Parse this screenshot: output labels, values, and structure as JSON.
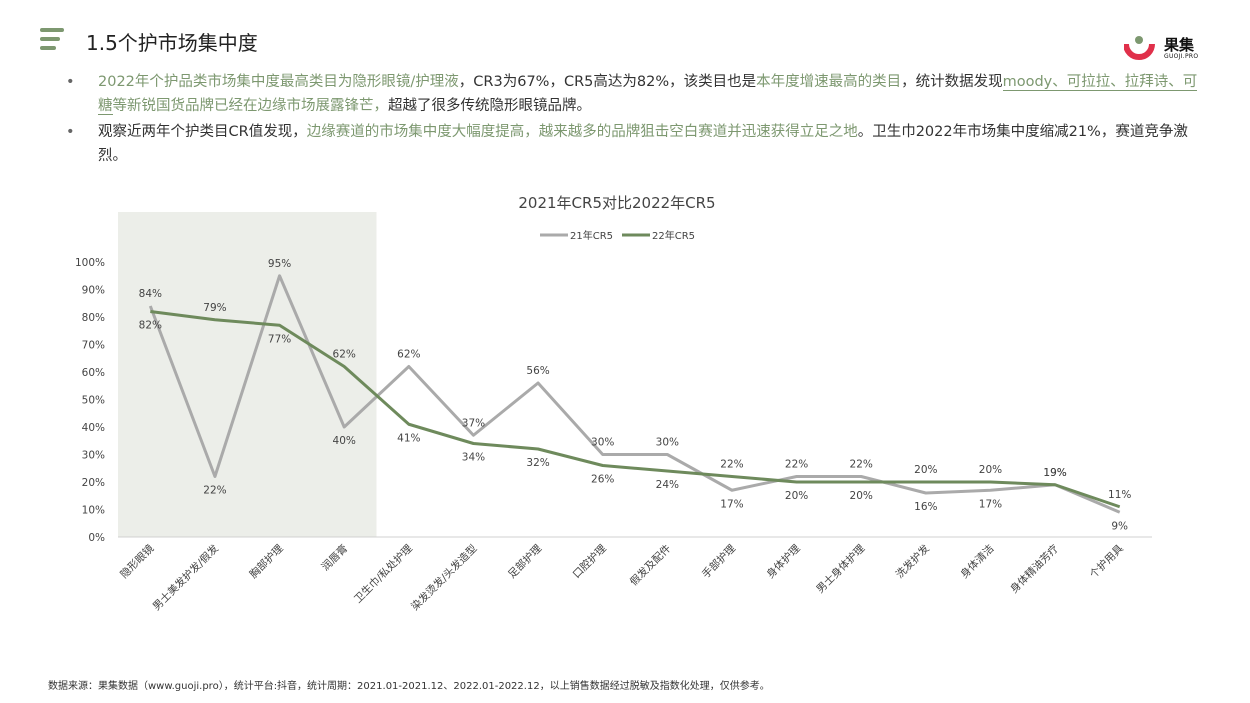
{
  "header": {
    "title": "1.5个护市场集中度",
    "logo_text": "果集",
    "logo_sub": "GUOJI.PRO"
  },
  "bullets": [
    {
      "p1": "2022年个护品类市场集中度最高类目为隐形眼镜/护理液",
      "p2": "，CR3为67%，CR5高达为82%，该类目也是",
      "p3": "本年度增速最高的类目",
      "p4": "，统计数据发现",
      "p5": "moody、可拉拉、拉拜诗、可糖",
      "p6": "等新锐国货品牌已经在边缘市场展露锋芒，",
      "p7": "超越了很多传统隐形眼镜品牌。"
    },
    {
      "p1": "观察近两年个护类目CR值发现，",
      "p2": "边缘赛道的市场集中度大幅度提高，越来越多的品牌狙击空白赛道并迅速获得立足之地",
      "p3": "。卫生巾2022年市场集中度缩减21%，赛道竞争激烈。"
    }
  ],
  "chart_data": {
    "type": "line",
    "title": "2021年CR5对比2022年CR5",
    "categories": [
      "隐形眼镜",
      "男士美发护发/假发",
      "胸部护理",
      "润唇膏",
      "卫生巾/私处护理",
      "染发烫发/头发造型",
      "足部护理",
      "口腔护理",
      "假发及配件",
      "手部护理",
      "身体护理",
      "男士身体护理",
      "洗发护发",
      "身体清洁",
      "身体精油芳疗",
      "个护用具"
    ],
    "series": [
      {
        "name": "21年CR5",
        "color": "#aaaaaa",
        "values": [
          84,
          22,
          95,
          40,
          62,
          37,
          56,
          30,
          30,
          17,
          22,
          22,
          16,
          17,
          19,
          9
        ]
      },
      {
        "name": "22年CR5",
        "color": "#6e8a5c",
        "values": [
          82,
          79,
          77,
          62,
          41,
          34,
          32,
          26,
          24,
          22,
          20,
          20,
          20,
          20,
          19,
          11
        ]
      }
    ],
    "ylim": [
      0,
      100
    ],
    "yticks": [
      "0%",
      "10%",
      "20%",
      "30%",
      "40%",
      "50%",
      "60%",
      "70%",
      "80%",
      "90%",
      "100%"
    ],
    "highlight": {
      "from_category": 0,
      "to_category": 3,
      "color": "#eceee9"
    },
    "legend_position": "top"
  },
  "footer": {
    "source": "数据来源：果集数据（www.guoji.pro），统计平台:抖音，统计周期：2021.01-2021.12、2022.01-2022.12，以上销售数据经过脱敏及指数化处理，仅供参考。"
  },
  "colors": {
    "accent": "#7d9870",
    "logo_red": "#e0304a"
  }
}
